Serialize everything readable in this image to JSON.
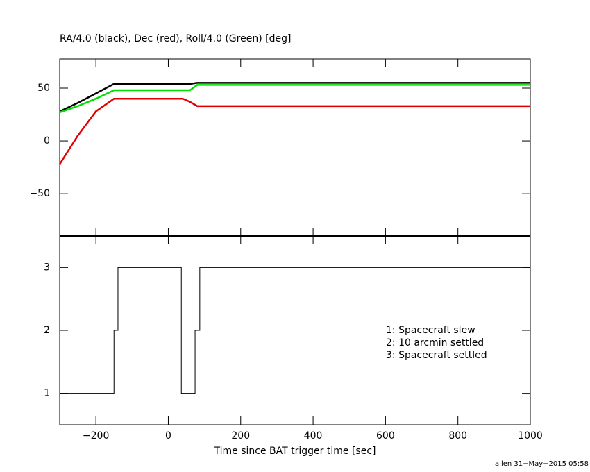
{
  "chart_data": [
    {
      "type": "line",
      "title": "RA/4.0 (black), Dec (red), Roll/4.0 (Green) [deg]",
      "x": [
        -300,
        -250,
        -200,
        -150,
        40,
        60,
        80,
        1000
      ],
      "series": [
        {
          "name": "RA/4.0",
          "color": "#000000",
          "values": [
            28,
            36,
            45,
            54,
            54,
            54,
            55,
            55
          ]
        },
        {
          "name": "Roll/4.0",
          "color": "#00e000",
          "values": [
            27,
            33,
            40,
            48,
            48,
            48,
            53,
            53
          ]
        },
        {
          "name": "Dec",
          "color": "#e00000",
          "values": [
            -22,
            5,
            28,
            40,
            40,
            37,
            33,
            33
          ]
        }
      ],
      "xlim": [
        -300,
        1000
      ],
      "ylim": [
        -90,
        77.6
      ],
      "yticks": [
        {
          "value": -50,
          "label": "−50"
        },
        0,
        50
      ]
    },
    {
      "type": "step",
      "x_label": "Time since BAT trigger time [sec]",
      "x": [
        -300,
        -150,
        -139,
        36,
        74,
        87,
        1000
      ],
      "values": [
        1,
        2,
        3,
        1,
        2,
        3,
        3
      ],
      "color": "#000000",
      "xlim": [
        -300,
        1000
      ],
      "ylim": [
        0.5,
        3.5
      ],
      "xticks": [
        {
          "value": -200,
          "label": "−200"
        },
        0,
        200,
        400,
        600,
        800,
        1000
      ],
      "yticks": [
        1,
        2,
        3
      ],
      "annotations": [
        "1: Spacecraft slew",
        "2: 10 arcmin settled",
        "3: Spacecraft settled"
      ]
    }
  ],
  "footer": "allen 31−May−2015 05:58"
}
